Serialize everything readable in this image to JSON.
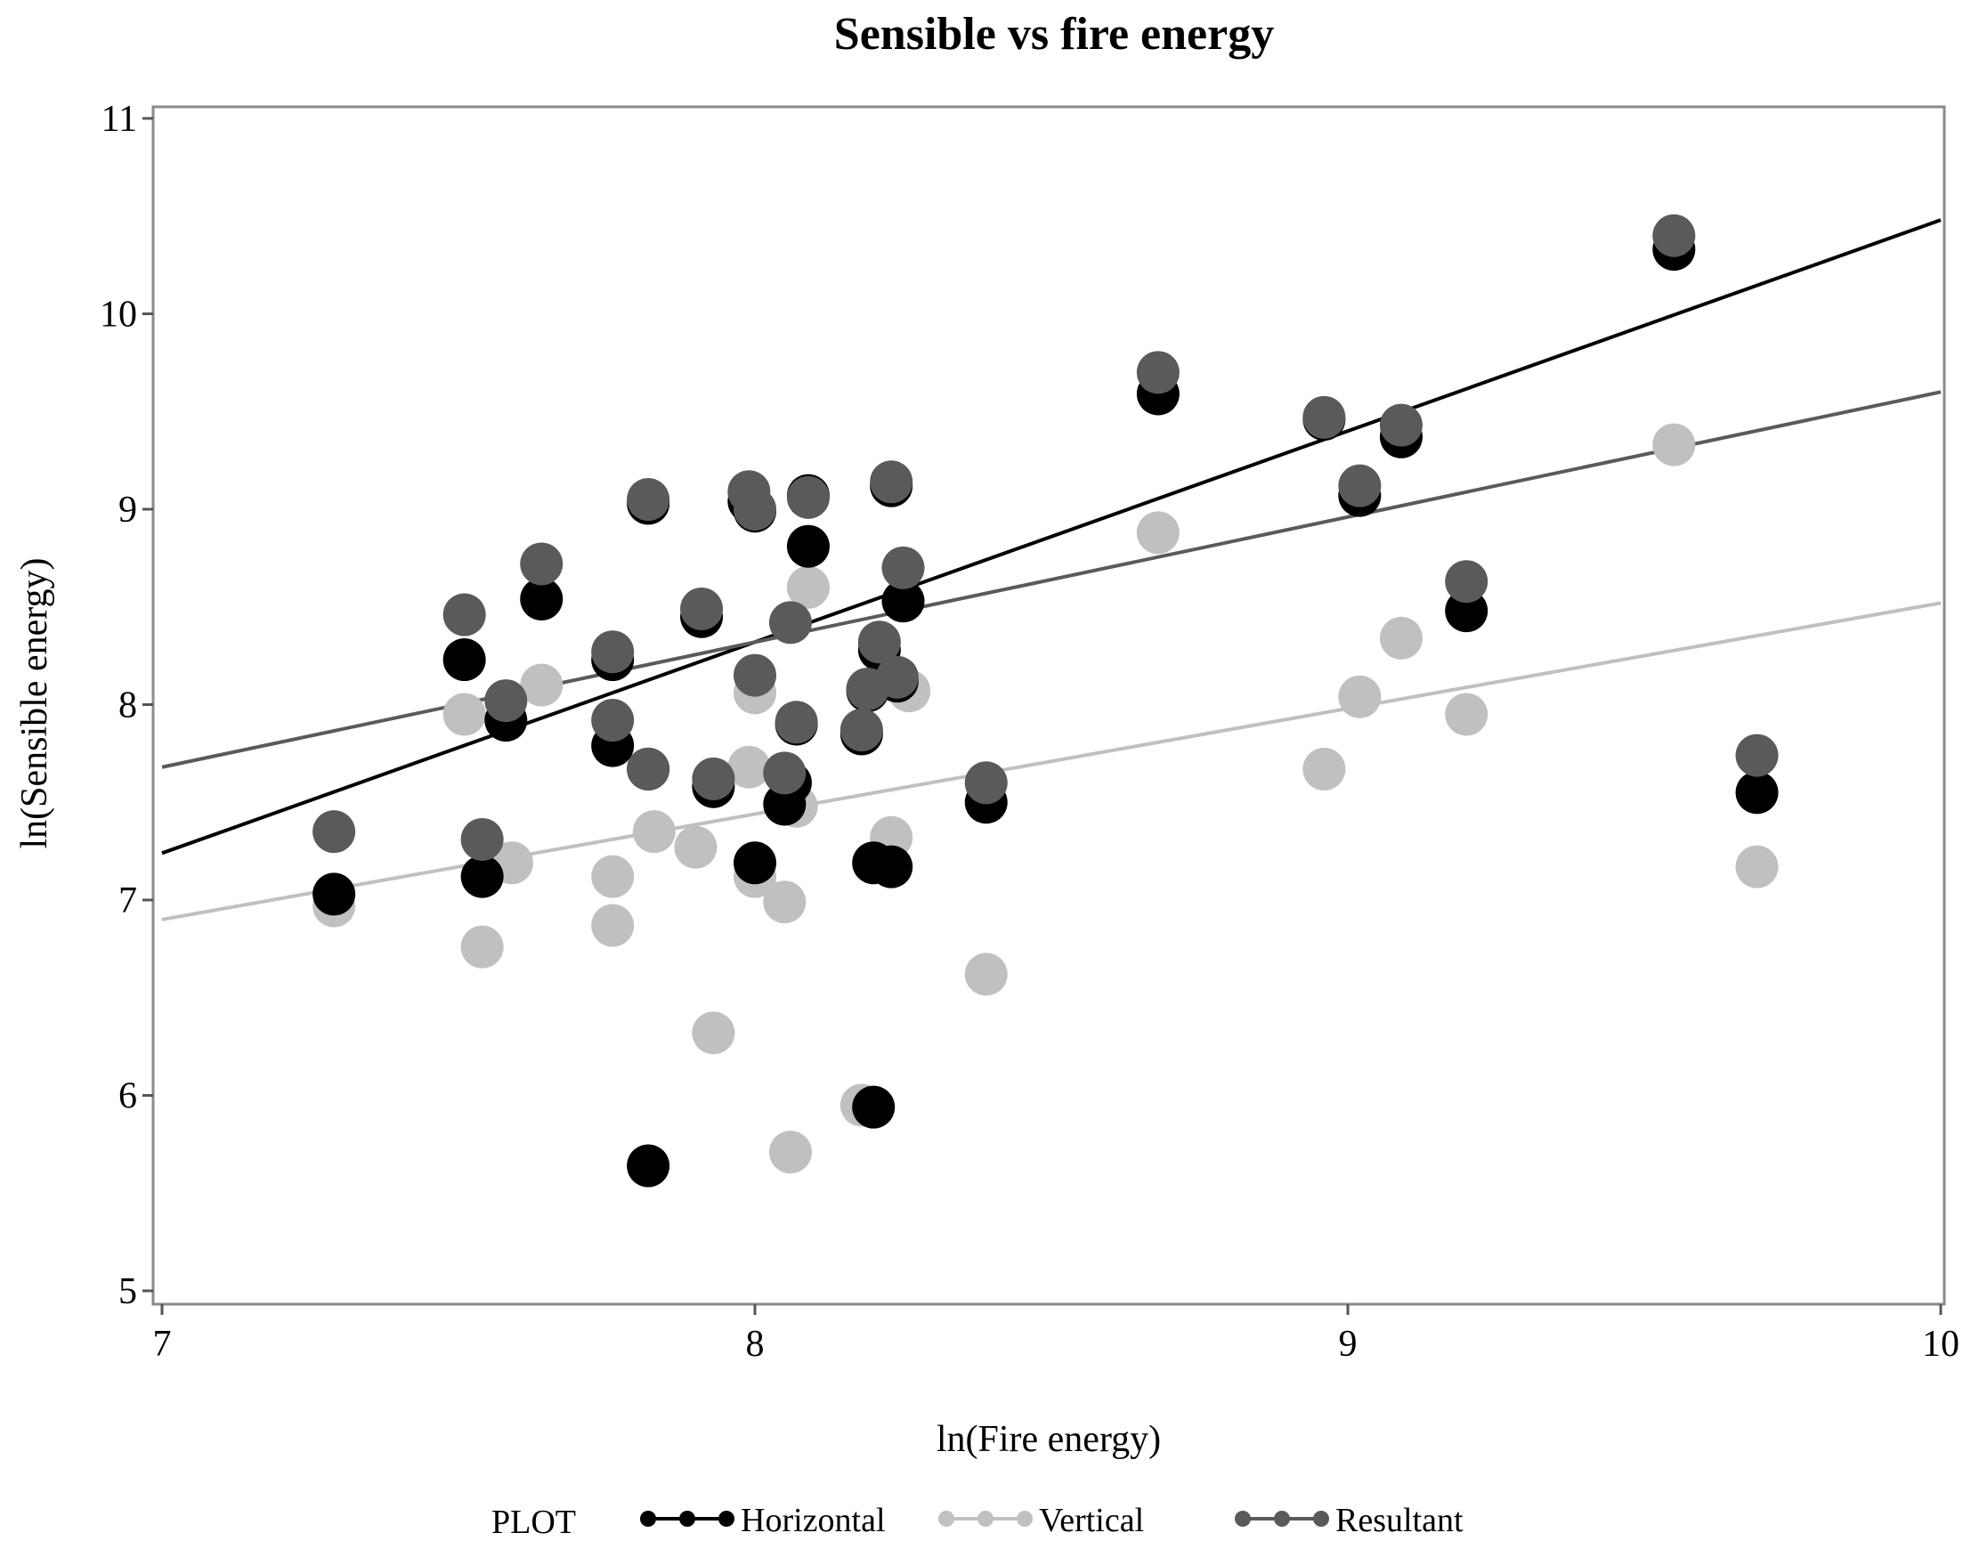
{
  "chart_data": {
    "type": "scatter",
    "title": "Sensible vs fire energy",
    "xlabel": "ln(Fire energy)",
    "ylabel": "ln(Sensible energy)",
    "xlim": [
      7,
      10
    ],
    "ylim": [
      5,
      11
    ],
    "x_ticks": [
      7,
      8,
      9,
      10
    ],
    "y_ticks": [
      5,
      6,
      7,
      8,
      9,
      10,
      11
    ],
    "grid": false,
    "legend": {
      "title": "PLOT",
      "position": "bottom",
      "entries": [
        "Horizontal",
        "Vertical",
        "Resultant"
      ]
    },
    "series": [
      {
        "name": "Horizontal",
        "color": "#000000",
        "points": [
          [
            7.29,
            7.03
          ],
          [
            7.51,
            8.23
          ],
          [
            7.54,
            7.12
          ],
          [
            7.58,
            7.92
          ],
          [
            7.64,
            8.54
          ],
          [
            7.76,
            7.79
          ],
          [
            7.76,
            8.23
          ],
          [
            7.82,
            7.67
          ],
          [
            7.82,
            9.03
          ],
          [
            7.82,
            5.64
          ],
          [
            7.91,
            8.45
          ],
          [
            7.93,
            7.58
          ],
          [
            7.99,
            9.04
          ],
          [
            8.0,
            7.19
          ],
          [
            8.0,
            8.99
          ],
          [
            8.05,
            7.49
          ],
          [
            8.06,
            7.6
          ],
          [
            8.07,
            7.9
          ],
          [
            8.09,
            8.81
          ],
          [
            8.09,
            9.07
          ],
          [
            8.18,
            7.85
          ],
          [
            8.19,
            8.07
          ],
          [
            8.2,
            7.19
          ],
          [
            8.2,
            5.94
          ],
          [
            8.21,
            8.28
          ],
          [
            8.23,
            7.17
          ],
          [
            8.23,
            9.12
          ],
          [
            8.24,
            8.12
          ],
          [
            8.25,
            8.53
          ],
          [
            8.39,
            7.5
          ],
          [
            8.68,
            9.59
          ],
          [
            8.96,
            9.46
          ],
          [
            9.02,
            9.07
          ],
          [
            9.09,
            9.37
          ],
          [
            9.2,
            8.48
          ],
          [
            9.55,
            10.33
          ],
          [
            9.69,
            7.55
          ]
        ],
        "fit": {
          "intercept": -0.32,
          "slope": 1.08
        }
      },
      {
        "name": "Vertical",
        "color": "#c0c0c0",
        "points": [
          [
            7.29,
            6.97
          ],
          [
            7.51,
            7.95
          ],
          [
            7.54,
            6.76
          ],
          [
            7.59,
            7.19
          ],
          [
            7.64,
            8.1
          ],
          [
            7.76,
            7.12
          ],
          [
            7.76,
            6.87
          ],
          [
            7.83,
            7.35
          ],
          [
            7.9,
            7.27
          ],
          [
            7.93,
            6.32
          ],
          [
            7.99,
            7.68
          ],
          [
            8.0,
            7.12
          ],
          [
            8.0,
            8.06
          ],
          [
            8.05,
            6.99
          ],
          [
            8.06,
            5.71
          ],
          [
            8.07,
            7.48
          ],
          [
            8.09,
            8.6
          ],
          [
            8.18,
            5.95
          ],
          [
            8.23,
            7.32
          ],
          [
            8.26,
            8.07
          ],
          [
            8.39,
            6.62
          ],
          [
            8.68,
            8.88
          ],
          [
            8.96,
            7.67
          ],
          [
            9.02,
            8.04
          ],
          [
            9.09,
            8.34
          ],
          [
            9.2,
            7.95
          ],
          [
            9.55,
            9.33
          ],
          [
            9.69,
            7.17
          ]
        ],
        "fit": {
          "intercept": 3.12,
          "slope": 0.54
        }
      },
      {
        "name": "Resultant",
        "color": "#5a5a5a",
        "points": [
          [
            7.29,
            7.35
          ],
          [
            7.51,
            8.46
          ],
          [
            7.54,
            7.31
          ],
          [
            7.58,
            8.02
          ],
          [
            7.64,
            8.72
          ],
          [
            7.76,
            7.92
          ],
          [
            7.76,
            8.27
          ],
          [
            7.82,
            7.67
          ],
          [
            7.82,
            9.05
          ],
          [
            7.91,
            8.49
          ],
          [
            7.93,
            7.62
          ],
          [
            7.99,
            9.09
          ],
          [
            8.0,
            9.0
          ],
          [
            8.0,
            8.15
          ],
          [
            8.05,
            7.65
          ],
          [
            8.06,
            8.42
          ],
          [
            8.07,
            7.91
          ],
          [
            8.09,
            9.06
          ],
          [
            8.18,
            7.87
          ],
          [
            8.19,
            8.08
          ],
          [
            8.21,
            8.32
          ],
          [
            8.23,
            9.14
          ],
          [
            8.24,
            8.14
          ],
          [
            8.25,
            8.7
          ],
          [
            8.39,
            7.6
          ],
          [
            8.68,
            9.7
          ],
          [
            8.96,
            9.47
          ],
          [
            9.02,
            9.12
          ],
          [
            9.09,
            9.43
          ],
          [
            9.2,
            8.63
          ],
          [
            9.55,
            10.4
          ],
          [
            9.69,
            7.74
          ]
        ],
        "fit": {
          "intercept": 3.2,
          "slope": 0.64
        }
      }
    ]
  }
}
